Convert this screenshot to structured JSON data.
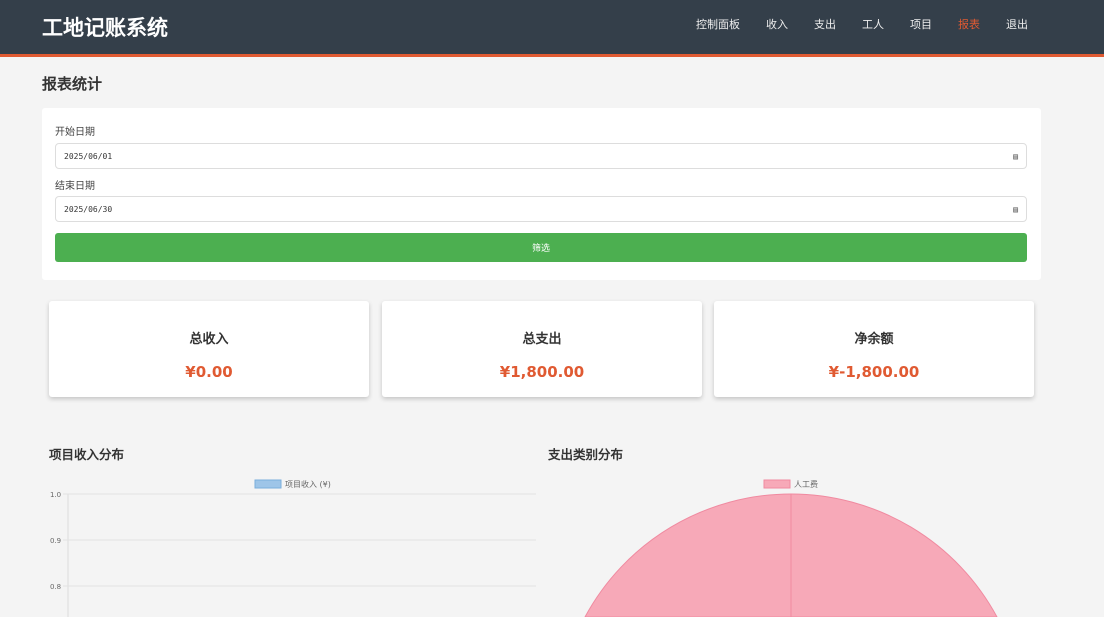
{
  "header": {
    "logo": "工地记账系统",
    "nav": [
      {
        "label": "控制面板"
      },
      {
        "label": "收入"
      },
      {
        "label": "支出"
      },
      {
        "label": "工人"
      },
      {
        "label": "项目"
      },
      {
        "label": "报表",
        "active": true
      },
      {
        "label": "退出"
      }
    ]
  },
  "page_title": "报表统计",
  "filter": {
    "start_label": "开始日期",
    "start_value": "2025/06/01",
    "end_label": "结束日期",
    "end_value": "2025/06/30",
    "submit": "筛选"
  },
  "summary": [
    {
      "title": "总收入",
      "value": "¥0.00"
    },
    {
      "title": "总支出",
      "value": "¥1,800.00"
    },
    {
      "title": "净余额",
      "value": "¥-1,800.00"
    }
  ],
  "colors": {
    "accent": "#e05a32",
    "header": "#343f4a",
    "button": "#4caf50",
    "income_bar": "#9ec5e8",
    "pie": "#f7a9b8"
  },
  "chart_data": [
    {
      "type": "bar",
      "title": "项目收入分布",
      "categories": [],
      "series": [
        {
          "name": "项目收入 (¥)",
          "values": []
        }
      ],
      "yticks": [
        "1.0",
        "0.9",
        "0.8"
      ],
      "ylim": [
        0,
        1
      ],
      "grid": true,
      "legend": "top"
    },
    {
      "type": "pie",
      "title": "支出类别分布",
      "categories": [
        "人工费"
      ],
      "values": [
        1800
      ],
      "legend": "top"
    }
  ]
}
